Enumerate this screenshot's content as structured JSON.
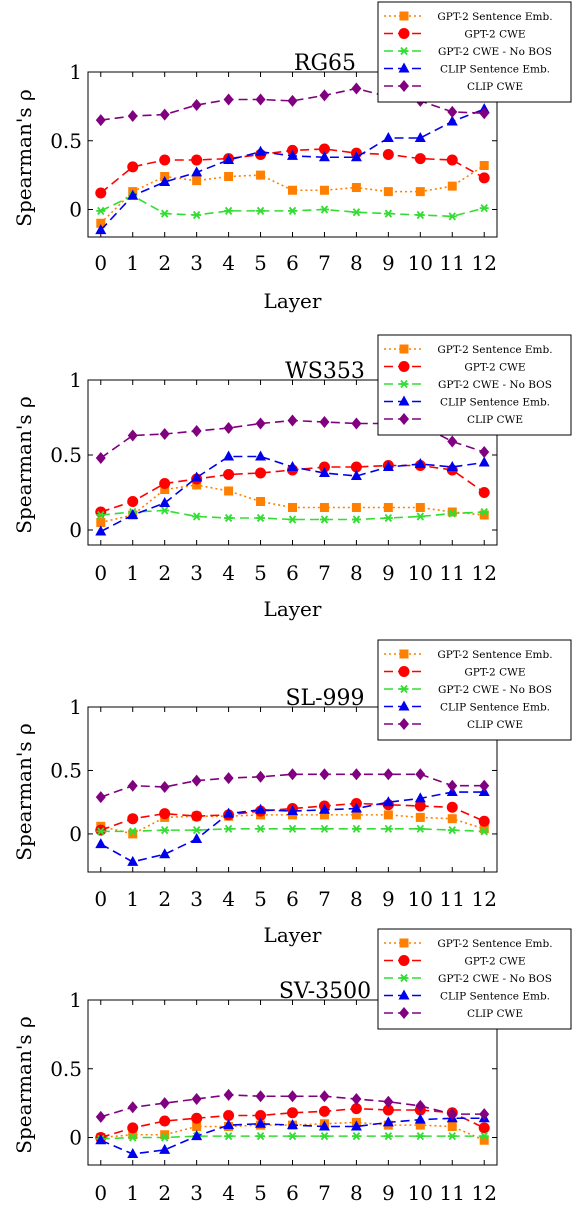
{
  "legend_entries": [
    "GPT-2 Sentence Emb.",
    "GPT-2 CWE",
    "GPT-2 CWE - No BOS",
    "CLIP Sentence Emb.",
    "CLIP CWE"
  ],
  "series_colors": [
    "#ff8000",
    "#ff0000",
    "#33dd33",
    "#0000ee",
    "#800080"
  ],
  "chart_data": [
    {
      "type": "line",
      "title": "RG65",
      "xlabel": "Layer",
      "ylabel": "Spearman's ρ",
      "x": [
        0,
        1,
        2,
        3,
        4,
        5,
        6,
        7,
        8,
        9,
        10,
        11,
        12
      ],
      "x_tick_labels": [
        "0",
        "1",
        "2",
        "3",
        "4",
        "5",
        "6",
        "7",
        "8",
        "9",
        "10",
        "11",
        "12"
      ],
      "y_tick_labels": [
        "0",
        "0.5",
        "1"
      ],
      "y_ticks": [
        0,
        0.5,
        1
      ],
      "ylim": [
        -0.2,
        1.0
      ],
      "legend_position": "top-right",
      "series": [
        {
          "name": "GPT-2 Sentence Emb.",
          "values": [
            -0.1,
            0.13,
            0.24,
            0.21,
            0.24,
            0.25,
            0.14,
            0.14,
            0.16,
            0.13,
            0.13,
            0.17,
            0.32
          ]
        },
        {
          "name": "GPT-2 CWE",
          "values": [
            0.12,
            0.31,
            0.36,
            0.36,
            0.37,
            0.4,
            0.43,
            0.44,
            0.41,
            0.4,
            0.37,
            0.36,
            0.23
          ]
        },
        {
          "name": "GPT-2 CWE - No BOS",
          "values": [
            -0.01,
            0.1,
            -0.03,
            -0.04,
            -0.01,
            -0.01,
            -0.01,
            0.0,
            -0.02,
            -0.03,
            -0.04,
            -0.05,
            0.01
          ]
        },
        {
          "name": "CLIP Sentence Emb.",
          "values": [
            -0.15,
            0.1,
            0.2,
            0.27,
            0.36,
            0.42,
            0.39,
            0.38,
            0.38,
            0.52,
            0.52,
            0.64,
            0.73
          ]
        },
        {
          "name": "CLIP CWE",
          "values": [
            0.65,
            0.68,
            0.69,
            0.76,
            0.8,
            0.8,
            0.79,
            0.83,
            0.88,
            0.82,
            0.79,
            0.71,
            0.7
          ]
        }
      ]
    },
    {
      "type": "line",
      "title": "WS353",
      "xlabel": "Layer",
      "ylabel": "Spearman's ρ",
      "x": [
        0,
        1,
        2,
        3,
        4,
        5,
        6,
        7,
        8,
        9,
        10,
        11,
        12
      ],
      "x_tick_labels": [
        "0",
        "1",
        "2",
        "3",
        "4",
        "5",
        "6",
        "7",
        "8",
        "9",
        "10",
        "11",
        "12"
      ],
      "y_tick_labels": [
        "0",
        "0.5",
        "1"
      ],
      "y_ticks": [
        0,
        0.5,
        1
      ],
      "ylim": [
        -0.1,
        1.0
      ],
      "legend_position": "top-right",
      "series": [
        {
          "name": "GPT-2 Sentence Emb.",
          "values": [
            0.05,
            0.1,
            0.27,
            0.3,
            0.26,
            0.19,
            0.15,
            0.15,
            0.15,
            0.15,
            0.15,
            0.12,
            0.1
          ]
        },
        {
          "name": "GPT-2 CWE",
          "values": [
            0.12,
            0.19,
            0.31,
            0.34,
            0.37,
            0.38,
            0.4,
            0.42,
            0.42,
            0.43,
            0.43,
            0.4,
            0.25
          ]
        },
        {
          "name": "GPT-2 CWE - No BOS",
          "values": [
            0.1,
            0.12,
            0.13,
            0.09,
            0.08,
            0.08,
            0.07,
            0.07,
            0.07,
            0.08,
            0.09,
            0.11,
            0.12
          ]
        },
        {
          "name": "CLIP Sentence Emb.",
          "values": [
            -0.01,
            0.1,
            0.18,
            0.35,
            0.49,
            0.49,
            0.42,
            0.38,
            0.36,
            0.42,
            0.44,
            0.42,
            0.45
          ]
        },
        {
          "name": "CLIP CWE",
          "values": [
            0.48,
            0.63,
            0.64,
            0.66,
            0.68,
            0.71,
            0.73,
            0.72,
            0.71,
            0.71,
            0.7,
            0.59,
            0.52
          ]
        }
      ]
    },
    {
      "type": "line",
      "title": "SL-999",
      "xlabel": "Layer",
      "ylabel": "Spearman's ρ",
      "x": [
        0,
        1,
        2,
        3,
        4,
        5,
        6,
        7,
        8,
        9,
        10,
        11,
        12
      ],
      "x_tick_labels": [
        "0",
        "1",
        "2",
        "3",
        "4",
        "5",
        "6",
        "7",
        "8",
        "9",
        "10",
        "11",
        "12"
      ],
      "y_tick_labels": [
        "0",
        "0.5",
        "1"
      ],
      "y_ticks": [
        0,
        0.5,
        1
      ],
      "ylim": [
        -0.3,
        1.0
      ],
      "legend_position": "top-right",
      "series": [
        {
          "name": "GPT-2 Sentence Emb.",
          "values": [
            0.06,
            0.0,
            0.13,
            0.14,
            0.14,
            0.15,
            0.15,
            0.15,
            0.15,
            0.15,
            0.13,
            0.12,
            0.04
          ]
        },
        {
          "name": "GPT-2 CWE",
          "values": [
            0.03,
            0.12,
            0.16,
            0.14,
            0.15,
            0.18,
            0.2,
            0.22,
            0.24,
            0.23,
            0.22,
            0.21,
            0.1
          ]
        },
        {
          "name": "GPT-2 CWE - No BOS",
          "values": [
            0.02,
            0.02,
            0.03,
            0.03,
            0.04,
            0.04,
            0.04,
            0.04,
            0.04,
            0.04,
            0.04,
            0.03,
            0.02
          ]
        },
        {
          "name": "CLIP Sentence Emb.",
          "values": [
            -0.08,
            -0.22,
            -0.16,
            -0.04,
            0.16,
            0.19,
            0.18,
            0.19,
            0.2,
            0.25,
            0.28,
            0.33,
            0.33
          ]
        },
        {
          "name": "CLIP CWE",
          "values": [
            0.29,
            0.38,
            0.37,
            0.42,
            0.44,
            0.45,
            0.47,
            0.47,
            0.47,
            0.47,
            0.47,
            0.38,
            0.38
          ]
        }
      ]
    },
    {
      "type": "line",
      "title": "SV-3500",
      "xlabel": "Layer",
      "ylabel": "Spearman's ρ",
      "x": [
        0,
        1,
        2,
        3,
        4,
        5,
        6,
        7,
        8,
        9,
        10,
        11,
        12
      ],
      "x_tick_labels": [
        "0",
        "1",
        "2",
        "3",
        "4",
        "5",
        "6",
        "7",
        "8",
        "9",
        "10",
        "11",
        "12"
      ],
      "y_tick_labels": [
        "0",
        "0.5",
        "1"
      ],
      "y_ticks": [
        0,
        0.5,
        1
      ],
      "ylim": [
        -0.2,
        1.0
      ],
      "legend_position": "top-right",
      "series": [
        {
          "name": "GPT-2 Sentence Emb.",
          "values": [
            0.0,
            0.02,
            0.02,
            0.08,
            0.08,
            0.09,
            0.09,
            0.1,
            0.11,
            0.09,
            0.09,
            0.08,
            -0.02
          ]
        },
        {
          "name": "GPT-2 CWE",
          "values": [
            0.0,
            0.07,
            0.12,
            0.14,
            0.16,
            0.16,
            0.18,
            0.19,
            0.21,
            0.2,
            0.2,
            0.18,
            0.07
          ]
        },
        {
          "name": "GPT-2 CWE - No BOS",
          "values": [
            -0.01,
            0.0,
            0.0,
            0.01,
            0.01,
            0.01,
            0.01,
            0.01,
            0.01,
            0.01,
            0.01,
            0.01,
            0.01
          ]
        },
        {
          "name": "CLIP Sentence Emb.",
          "values": [
            -0.02,
            -0.12,
            -0.09,
            0.01,
            0.09,
            0.1,
            0.09,
            0.08,
            0.08,
            0.11,
            0.13,
            0.14,
            0.14
          ]
        },
        {
          "name": "CLIP CWE",
          "values": [
            0.15,
            0.22,
            0.25,
            0.28,
            0.31,
            0.3,
            0.3,
            0.3,
            0.28,
            0.26,
            0.23,
            0.17,
            0.17
          ]
        }
      ]
    }
  ]
}
